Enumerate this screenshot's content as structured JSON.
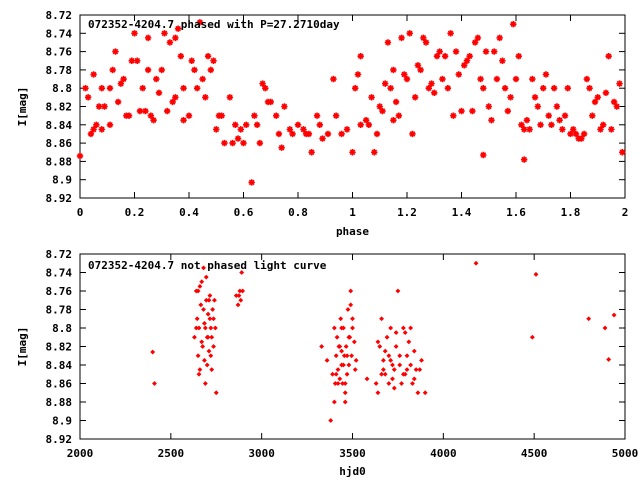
{
  "chart_data": [
    {
      "type": "scatter",
      "title": "072352-4204.7 phased with P=27.2710day",
      "xlabel": "phase",
      "ylabel": "I[mag]",
      "xlim": [
        0,
        2
      ],
      "ylim": [
        8.72,
        8.92
      ],
      "y_inverted": true,
      "x_ticks": [
        "0",
        "0.2",
        "0.4",
        "0.6",
        "0.8",
        "1",
        "1.2",
        "1.4",
        "1.6",
        "1.8",
        "2"
      ],
      "y_ticks": [
        "8.72",
        "8.74",
        "8.76",
        "8.78",
        "8.8",
        "8.82",
        "8.84",
        "8.86",
        "8.88",
        "8.9",
        "8.92"
      ],
      "grid": false,
      "marker_color": "#ff0000",
      "marker": "star",
      "points": [
        [
          0.0,
          8.874
        ],
        [
          0.02,
          8.8
        ],
        [
          0.03,
          8.81
        ],
        [
          0.04,
          8.85
        ],
        [
          0.05,
          8.785
        ],
        [
          0.05,
          8.845
        ],
        [
          0.06,
          8.84
        ],
        [
          0.07,
          8.82
        ],
        [
          0.08,
          8.8
        ],
        [
          0.08,
          8.845
        ],
        [
          0.11,
          8.8
        ],
        [
          0.12,
          8.78
        ],
        [
          0.13,
          8.76
        ],
        [
          0.14,
          8.815
        ],
        [
          0.15,
          8.795
        ],
        [
          0.16,
          8.79
        ],
        [
          0.17,
          8.83
        ],
        [
          0.18,
          8.83
        ],
        [
          0.19,
          8.77
        ],
        [
          0.2,
          8.74
        ],
        [
          0.21,
          8.77
        ],
        [
          0.22,
          8.825
        ],
        [
          0.23,
          8.8
        ],
        [
          0.24,
          8.825
        ],
        [
          0.25,
          8.745
        ],
        [
          0.25,
          8.78
        ],
        [
          0.26,
          8.83
        ],
        [
          0.27,
          8.835
        ],
        [
          0.28,
          8.79
        ],
        [
          0.29,
          8.805
        ],
        [
          0.3,
          8.78
        ],
        [
          0.31,
          8.74
        ],
        [
          0.32,
          8.825
        ],
        [
          0.33,
          8.75
        ],
        [
          0.34,
          8.815
        ],
        [
          0.35,
          8.745
        ],
        [
          0.35,
          8.81
        ],
        [
          0.36,
          8.735
        ],
        [
          0.37,
          8.765
        ],
        [
          0.38,
          8.8
        ],
        [
          0.38,
          8.835
        ],
        [
          0.4,
          8.83
        ],
        [
          0.41,
          8.77
        ],
        [
          0.42,
          8.78
        ],
        [
          0.43,
          8.8
        ],
        [
          0.44,
          8.728
        ],
        [
          0.45,
          8.79
        ],
        [
          0.46,
          8.81
        ],
        [
          0.47,
          8.765
        ],
        [
          0.48,
          8.78
        ],
        [
          0.49,
          8.77
        ],
        [
          0.5,
          8.845
        ],
        [
          0.51,
          8.83
        ],
        [
          0.52,
          8.83
        ],
        [
          0.53,
          8.86
        ],
        [
          0.55,
          8.81
        ],
        [
          0.56,
          8.86
        ],
        [
          0.57,
          8.84
        ],
        [
          0.58,
          8.855
        ],
        [
          0.6,
          8.86
        ],
        [
          0.61,
          8.84
        ],
        [
          0.63,
          8.903
        ],
        [
          0.64,
          8.83
        ],
        [
          0.65,
          8.84
        ],
        [
          0.66,
          8.86
        ],
        [
          0.67,
          8.795
        ],
        [
          0.68,
          8.8
        ],
        [
          0.69,
          8.815
        ],
        [
          0.7,
          8.815
        ],
        [
          0.72,
          8.83
        ],
        [
          0.73,
          8.85
        ],
        [
          0.74,
          8.865
        ],
        [
          0.75,
          8.82
        ],
        [
          0.77,
          8.845
        ],
        [
          0.78,
          8.85
        ],
        [
          0.8,
          8.84
        ],
        [
          0.82,
          8.845
        ],
        [
          0.83,
          8.85
        ],
        [
          0.84,
          8.85
        ],
        [
          0.85,
          8.87
        ],
        [
          0.87,
          8.83
        ],
        [
          0.88,
          8.84
        ],
        [
          0.89,
          8.855
        ],
        [
          0.91,
          8.85
        ],
        [
          0.93,
          8.79
        ],
        [
          0.94,
          8.83
        ],
        [
          0.96,
          8.85
        ],
        [
          0.98,
          8.845
        ],
        [
          1.0,
          8.87
        ],
        [
          1.01,
          8.8
        ],
        [
          1.02,
          8.785
        ],
        [
          1.03,
          8.765
        ],
        [
          1.05,
          8.835
        ],
        [
          1.06,
          8.84
        ],
        [
          1.07,
          8.81
        ],
        [
          1.08,
          8.87
        ],
        [
          1.09,
          8.85
        ],
        [
          1.1,
          8.82
        ],
        [
          1.11,
          8.825
        ],
        [
          1.12,
          8.795
        ],
        [
          1.13,
          8.75
        ],
        [
          1.14,
          8.8
        ],
        [
          1.15,
          8.78
        ],
        [
          1.16,
          8.815
        ],
        [
          1.17,
          8.83
        ],
        [
          1.18,
          8.745
        ],
        [
          1.19,
          8.785
        ],
        [
          1.2,
          8.79
        ],
        [
          1.21,
          8.74
        ],
        [
          1.22,
          8.85
        ],
        [
          1.23,
          8.81
        ],
        [
          1.24,
          8.775
        ],
        [
          1.25,
          8.78
        ],
        [
          1.26,
          8.745
        ],
        [
          1.27,
          8.75
        ],
        [
          1.28,
          8.8
        ],
        [
          1.29,
          8.795
        ],
        [
          1.3,
          8.805
        ],
        [
          1.31,
          8.765
        ],
        [
          1.32,
          8.76
        ],
        [
          1.33,
          8.79
        ],
        [
          1.34,
          8.765
        ],
        [
          1.35,
          8.8
        ],
        [
          1.36,
          8.74
        ],
        [
          1.37,
          8.83
        ],
        [
          1.38,
          8.76
        ],
        [
          1.39,
          8.785
        ],
        [
          1.4,
          8.825
        ],
        [
          1.41,
          8.775
        ],
        [
          1.42,
          8.77
        ],
        [
          1.43,
          8.765
        ],
        [
          1.44,
          8.825
        ],
        [
          1.45,
          8.75
        ],
        [
          1.46,
          8.745
        ],
        [
          1.47,
          8.79
        ],
        [
          1.48,
          8.8
        ],
        [
          1.49,
          8.76
        ],
        [
          1.5,
          8.82
        ],
        [
          1.51,
          8.835
        ],
        [
          1.52,
          8.76
        ],
        [
          1.53,
          8.79
        ],
        [
          1.54,
          8.745
        ],
        [
          1.55,
          8.77
        ],
        [
          1.56,
          8.8
        ],
        [
          1.57,
          8.825
        ],
        [
          1.58,
          8.81
        ],
        [
          1.59,
          8.73
        ],
        [
          1.6,
          8.79
        ],
        [
          1.61,
          8.765
        ],
        [
          1.62,
          8.84
        ],
        [
          1.63,
          8.845
        ],
        [
          1.64,
          8.835
        ],
        [
          1.65,
          8.845
        ],
        [
          1.66,
          8.79
        ],
        [
          1.67,
          8.81
        ],
        [
          1.68,
          8.82
        ],
        [
          1.69,
          8.84
        ],
        [
          1.7,
          8.8
        ],
        [
          1.71,
          8.785
        ],
        [
          1.72,
          8.83
        ],
        [
          1.73,
          8.84
        ],
        [
          1.74,
          8.8
        ],
        [
          1.75,
          8.82
        ],
        [
          1.76,
          8.835
        ],
        [
          1.77,
          8.845
        ],
        [
          1.78,
          8.83
        ],
        [
          1.79,
          8.8
        ],
        [
          1.8,
          8.85
        ],
        [
          1.81,
          8.845
        ],
        [
          1.82,
          8.85
        ],
        [
          1.83,
          8.855
        ],
        [
          1.84,
          8.855
        ],
        [
          1.85,
          8.85
        ],
        [
          1.86,
          8.79
        ],
        [
          1.87,
          8.8
        ],
        [
          1.88,
          8.83
        ],
        [
          1.89,
          8.815
        ],
        [
          1.9,
          8.81
        ],
        [
          1.91,
          8.845
        ],
        [
          1.92,
          8.84
        ],
        [
          1.93,
          8.805
        ],
        [
          1.94,
          8.765
        ],
        [
          1.95,
          8.845
        ],
        [
          1.96,
          8.815
        ],
        [
          1.97,
          8.82
        ],
        [
          1.98,
          8.795
        ],
        [
          1.99,
          8.87
        ],
        [
          0.59,
          8.845
        ],
        [
          0.11,
          8.84
        ],
        [
          1.03,
          8.84
        ],
        [
          1.15,
          8.835
        ],
        [
          1.63,
          8.878
        ],
        [
          1.48,
          8.873
        ],
        [
          0.09,
          8.82
        ]
      ]
    },
    {
      "type": "scatter",
      "title": "072352-4204.7 not phased light curve",
      "xlabel": "hjd0",
      "ylabel": "I[mag]",
      "xlim": [
        2000,
        5000
      ],
      "ylim": [
        8.72,
        8.92
      ],
      "y_inverted": true,
      "x_ticks": [
        "2000",
        "2500",
        "3000",
        "3500",
        "4000",
        "4500",
        "5000"
      ],
      "y_ticks": [
        "8.72",
        "8.74",
        "8.76",
        "8.78",
        "8.8",
        "8.82",
        "8.84",
        "8.86",
        "8.88",
        "8.9",
        "8.92"
      ],
      "grid": false,
      "marker_color": "#ff0000",
      "marker": "diamond",
      "points": [
        [
          2400,
          8.826
        ],
        [
          2410,
          8.86
        ],
        [
          2630,
          8.81
        ],
        [
          2640,
          8.76
        ],
        [
          2645,
          8.79
        ],
        [
          2650,
          8.83
        ],
        [
          2655,
          8.8
        ],
        [
          2660,
          8.845
        ],
        [
          2665,
          8.775
        ],
        [
          2670,
          8.75
        ],
        [
          2675,
          8.82
        ],
        [
          2680,
          8.735
        ],
        [
          2685,
          8.795
        ],
        [
          2690,
          8.86
        ],
        [
          2695,
          8.77
        ],
        [
          2700,
          8.81
        ],
        [
          2705,
          8.785
        ],
        [
          2710,
          8.825
        ],
        [
          2715,
          8.765
        ],
        [
          2720,
          8.8
        ],
        [
          2725,
          8.845
        ],
        [
          2730,
          8.78
        ],
        [
          2735,
          8.82
        ],
        [
          2740,
          8.77
        ],
        [
          2745,
          8.8
        ],
        [
          2750,
          8.87
        ],
        [
          2660,
          8.755
        ],
        [
          2670,
          8.815
        ],
        [
          2680,
          8.78
        ],
        [
          2690,
          8.8
        ],
        [
          2700,
          8.84
        ],
        [
          2710,
          8.77
        ],
        [
          2720,
          8.83
        ],
        [
          2640,
          8.8
        ],
        [
          2650,
          8.76
        ],
        [
          2695,
          8.745
        ],
        [
          2705,
          8.81
        ],
        [
          2715,
          8.79
        ],
        [
          2725,
          8.81
        ],
        [
          2735,
          8.79
        ],
        [
          2655,
          8.85
        ],
        [
          2685,
          8.835
        ],
        [
          2860,
          8.765
        ],
        [
          2870,
          8.775
        ],
        [
          2880,
          8.76
        ],
        [
          2890,
          8.74
        ],
        [
          2895,
          8.76
        ],
        [
          2875,
          8.765
        ],
        [
          2885,
          8.77
        ],
        [
          3330,
          8.82
        ],
        [
          3360,
          8.835
        ],
        [
          3380,
          8.9
        ],
        [
          3390,
          8.85
        ],
        [
          3400,
          8.8
        ],
        [
          3405,
          8.86
        ],
        [
          3410,
          8.83
        ],
        [
          3415,
          8.81
        ],
        [
          3420,
          8.845
        ],
        [
          3425,
          8.82
        ],
        [
          3430,
          8.855
        ],
        [
          3435,
          8.79
        ],
        [
          3440,
          8.84
        ],
        [
          3445,
          8.86
        ],
        [
          3450,
          8.8
        ],
        [
          3455,
          8.83
        ],
        [
          3460,
          8.87
        ],
        [
          3465,
          8.82
        ],
        [
          3470,
          8.85
        ],
        [
          3475,
          8.78
        ],
        [
          3480,
          8.84
        ],
        [
          3485,
          8.81
        ],
        [
          3490,
          8.76
        ],
        [
          3495,
          8.83
        ],
        [
          3500,
          8.8
        ],
        [
          3510,
          8.815
        ],
        [
          3520,
          8.835
        ],
        [
          3400,
          8.88
        ],
        [
          3410,
          8.85
        ],
        [
          3420,
          8.86
        ],
        [
          3430,
          8.82
        ],
        [
          3440,
          8.8
        ],
        [
          3450,
          8.84
        ],
        [
          3460,
          8.88
        ],
        [
          3470,
          8.83
        ],
        [
          3480,
          8.81
        ],
        [
          3490,
          8.775
        ],
        [
          3500,
          8.79
        ],
        [
          3515,
          8.845
        ],
        [
          3440,
          8.825
        ],
        [
          3460,
          8.86
        ],
        [
          3580,
          8.855
        ],
        [
          3630,
          8.86
        ],
        [
          3640,
          8.87
        ],
        [
          3650,
          8.82
        ],
        [
          3660,
          8.79
        ],
        [
          3670,
          8.835
        ],
        [
          3680,
          8.85
        ],
        [
          3690,
          8.81
        ],
        [
          3700,
          8.83
        ],
        [
          3710,
          8.8
        ],
        [
          3720,
          8.855
        ],
        [
          3730,
          8.845
        ],
        [
          3740,
          8.82
        ],
        [
          3750,
          8.76
        ],
        [
          3760,
          8.84
        ],
        [
          3770,
          8.86
        ],
        [
          3780,
          8.8
        ],
        [
          3790,
          8.85
        ],
        [
          3800,
          8.83
        ],
        [
          3810,
          8.815
        ],
        [
          3820,
          8.84
        ],
        [
          3830,
          8.86
        ],
        [
          3840,
          8.825
        ],
        [
          3850,
          8.845
        ],
        [
          3860,
          8.87
        ],
        [
          3640,
          8.815
        ],
        [
          3660,
          8.85
        ],
        [
          3680,
          8.825
        ],
        [
          3700,
          8.86
        ],
        [
          3720,
          8.84
        ],
        [
          3740,
          8.805
        ],
        [
          3760,
          8.83
        ],
        [
          3780,
          8.85
        ],
        [
          3800,
          8.845
        ],
        [
          3820,
          8.8
        ],
        [
          3840,
          8.855
        ],
        [
          3870,
          8.845
        ],
        [
          3880,
          8.835
        ],
        [
          3900,
          8.87
        ],
        [
          3670,
          8.845
        ],
        [
          3710,
          8.835
        ],
        [
          3730,
          8.865
        ],
        [
          3790,
          8.805
        ],
        [
          4180,
          8.73
        ],
        [
          4490,
          8.81
        ],
        [
          4510,
          8.742
        ],
        [
          4800,
          8.79
        ],
        [
          4890,
          8.8
        ],
        [
          4910,
          8.834
        ],
        [
          4940,
          8.786
        ]
      ]
    }
  ]
}
